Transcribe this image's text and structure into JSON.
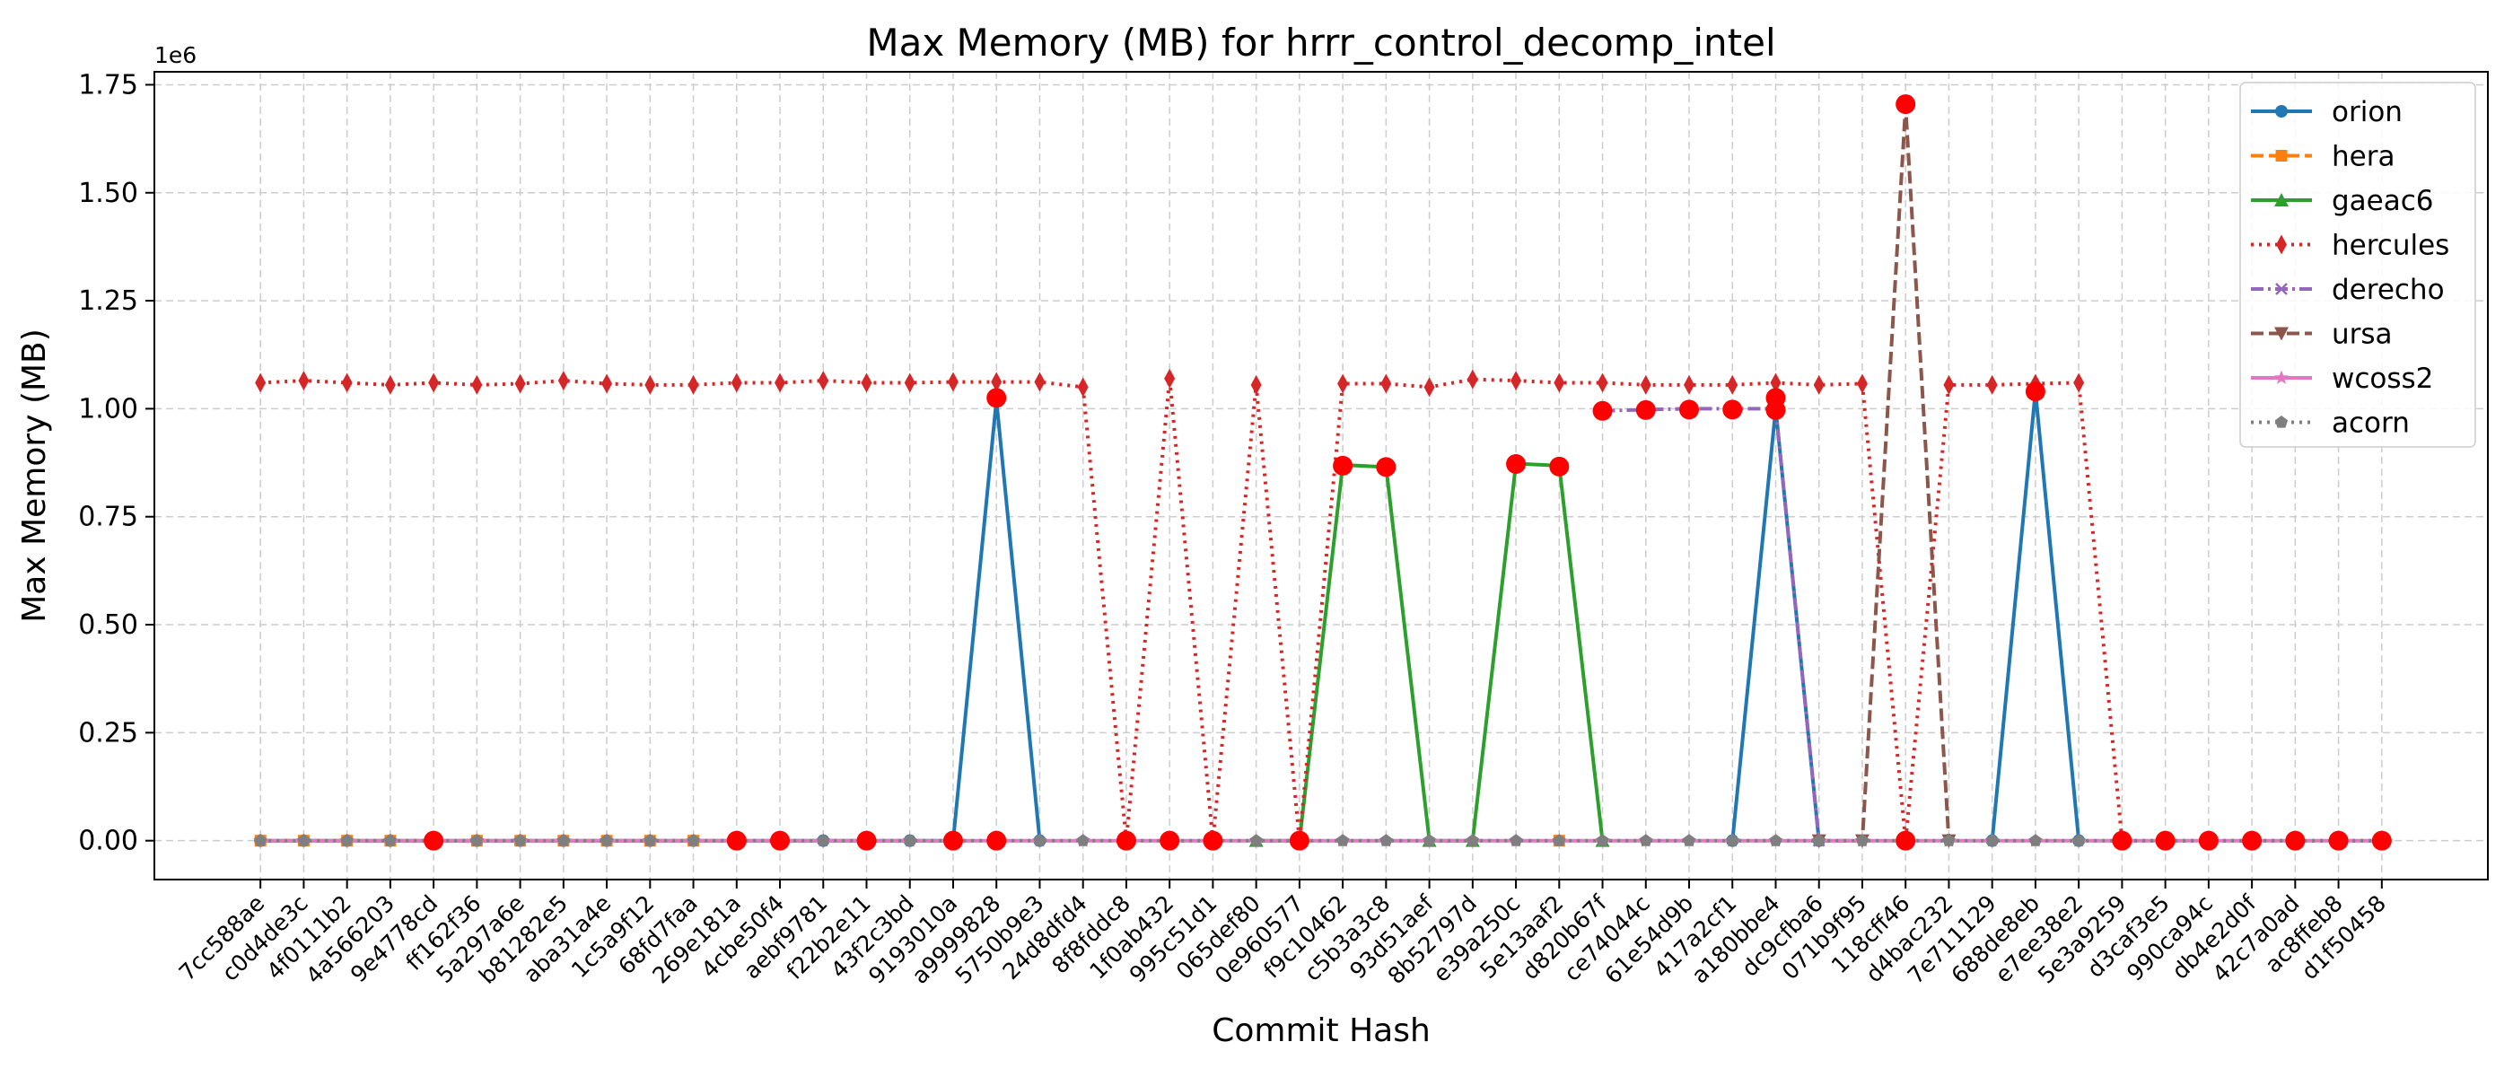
{
  "chart_data": {
    "type": "line",
    "title": "Max Memory (MB) for hrrr_control_decomp_intel",
    "xlabel": "Commit Hash",
    "ylabel": "Max Memory (MB)",
    "y_offset_text": "1e6",
    "y_scale": 1000000,
    "ylim": [
      -0.09,
      1.78
    ],
    "yticks": [
      0.0,
      0.25,
      0.5,
      0.75,
      1.0,
      1.25,
      1.5,
      1.75
    ],
    "ytick_labels": [
      "0.00",
      "0.25",
      "0.50",
      "0.75",
      "1.00",
      "1.25",
      "1.50",
      "1.75"
    ],
    "grid": true,
    "legend_position": "top-right",
    "categories": [
      "7cc588ae",
      "c0d4de3c",
      "4f0111b2",
      "4a566203",
      "9e4778cd",
      "ff162f36",
      "5a297a6e",
      "b81282e5",
      "aba31a4e",
      "1c5a9f12",
      "68fd7faa",
      "269e181a",
      "4cbe50f4",
      "aebf9781",
      "f22b2e11",
      "43f2c3bd",
      "9193010a",
      "a9999828",
      "5750b9e3",
      "24d8dfd4",
      "8f8fddc8",
      "1f0ab432",
      "995c51d1",
      "065def80",
      "0e960577",
      "f9c10462",
      "c5b3a3c8",
      "93d51aef",
      "8b52797d",
      "e39a250c",
      "5e13aaf2",
      "d820b67f",
      "ce74044c",
      "61e54d9b",
      "417a2cf1",
      "a180bbe4",
      "dc9cfba6",
      "071b9f95",
      "118cff46",
      "d4bac232",
      "7e711129",
      "688de8eb",
      "e7ee38e2",
      "5e3a9259",
      "d3caf3e5",
      "990ca94c",
      "db4e2d0f",
      "42c7a0ad",
      "ac8ffeb8",
      "d1f50458"
    ],
    "series": [
      {
        "name": "orion",
        "color": "#1f77b4",
        "dash": "solid",
        "marker": "circle",
        "values": [
          0,
          0,
          0,
          0,
          0,
          0,
          0,
          0,
          0,
          0,
          0,
          0,
          0,
          0,
          0,
          0,
          0,
          1.02,
          0,
          null,
          null,
          null,
          null,
          null,
          null,
          null,
          null,
          null,
          null,
          null,
          null,
          null,
          null,
          null,
          0,
          1.0,
          0,
          null,
          null,
          null,
          0,
          1.04,
          0,
          null,
          null,
          null,
          null,
          null,
          null,
          null
        ]
      },
      {
        "name": "hera",
        "color": "#ff7f0e",
        "dash": "dashed",
        "marker": "square",
        "values": [
          0,
          0,
          0,
          0,
          0,
          0,
          0,
          0,
          0,
          0,
          0,
          0,
          null,
          null,
          null,
          null,
          null,
          null,
          null,
          null,
          null,
          null,
          null,
          null,
          0,
          null,
          null,
          null,
          null,
          null,
          0,
          null,
          null,
          null,
          null,
          null,
          null,
          null,
          null,
          null,
          null,
          null,
          null,
          null,
          null,
          null,
          null,
          null,
          null,
          null
        ]
      },
      {
        "name": "gaeac6",
        "color": "#2ca02c",
        "dash": "solid",
        "marker": "triangle",
        "values": [
          null,
          null,
          null,
          null,
          null,
          null,
          null,
          null,
          null,
          null,
          null,
          null,
          null,
          null,
          null,
          null,
          null,
          null,
          null,
          null,
          null,
          null,
          null,
          0,
          0,
          0.87,
          0.865,
          0,
          0,
          0.873,
          0.868,
          0,
          null,
          null,
          null,
          null,
          null,
          null,
          null,
          null,
          null,
          null,
          null,
          null,
          null,
          null,
          null,
          null,
          null,
          null
        ]
      },
      {
        "name": "hercules",
        "color": "#d62728",
        "dash": "dotted",
        "marker": "thin_diamond",
        "values": [
          1.06,
          1.065,
          1.06,
          1.055,
          1.06,
          1.055,
          1.058,
          1.065,
          1.058,
          1.055,
          1.055,
          1.06,
          1.06,
          1.065,
          1.06,
          1.06,
          1.062,
          1.062,
          1.062,
          1.05,
          0,
          1.07,
          0,
          1.055,
          0,
          1.058,
          1.058,
          1.05,
          1.068,
          1.065,
          1.06,
          1.06,
          1.055,
          1.055,
          1.055,
          1.06,
          1.055,
          1.058,
          0,
          1.055,
          1.055,
          1.058,
          1.06,
          0,
          0,
          0,
          0,
          0,
          0,
          0
        ]
      },
      {
        "name": "derecho",
        "color": "#9467bd",
        "dash": "dashdot",
        "marker": "x",
        "values": [
          null,
          null,
          null,
          null,
          null,
          null,
          null,
          null,
          null,
          null,
          null,
          null,
          null,
          null,
          null,
          null,
          null,
          null,
          null,
          null,
          null,
          null,
          null,
          null,
          null,
          null,
          null,
          null,
          null,
          null,
          null,
          0.995,
          0.998,
          1.0,
          1.0,
          1.0,
          0,
          null,
          null,
          null,
          null,
          null,
          null,
          null,
          null,
          null,
          null,
          null,
          null,
          null
        ]
      },
      {
        "name": "ursa",
        "color": "#8c564b",
        "dash": "dashed",
        "marker": "triangle_down",
        "values": [
          null,
          null,
          null,
          null,
          null,
          null,
          null,
          null,
          null,
          null,
          null,
          null,
          null,
          null,
          null,
          null,
          null,
          null,
          null,
          null,
          null,
          null,
          null,
          null,
          null,
          null,
          null,
          null,
          null,
          null,
          null,
          null,
          null,
          null,
          null,
          null,
          0,
          0,
          1.7,
          0,
          null,
          null,
          null,
          null,
          null,
          null,
          null,
          null,
          null,
          null
        ]
      },
      {
        "name": "wcoss2",
        "color": "#e377c2",
        "dash": "solid",
        "marker": "star",
        "values": [
          0,
          0,
          0,
          0,
          0,
          0,
          0,
          0,
          0,
          0,
          0,
          0,
          0,
          0,
          0,
          0,
          0,
          0,
          0,
          0,
          0,
          0,
          0,
          0,
          0,
          0,
          0,
          0,
          0,
          0,
          0,
          0,
          0,
          0,
          0,
          0,
          0,
          0,
          0,
          0,
          0,
          0,
          0,
          0,
          0,
          0,
          0,
          0,
          0,
          0
        ]
      },
      {
        "name": "acorn",
        "color": "#7f7f7f",
        "dash": "dotted",
        "marker": "pentagon",
        "values": [
          0,
          0,
          0,
          0,
          0,
          0,
          0,
          0,
          0,
          0,
          0,
          0,
          0,
          0,
          0,
          0,
          0,
          0,
          0,
          0,
          0,
          0,
          0,
          0,
          0,
          0,
          0,
          0,
          0,
          0,
          0,
          0,
          0,
          0,
          0,
          0,
          0,
          0,
          0,
          0,
          0,
          0,
          0,
          0,
          0,
          0,
          0,
          0,
          0,
          0
        ]
      }
    ],
    "highlights": {
      "color": "#ff0000",
      "points": [
        {
          "x": "9e4778cd",
          "y": 0
        },
        {
          "x": "269e181a",
          "y": 0
        },
        {
          "x": "4cbe50f4",
          "y": 0
        },
        {
          "x": "f22b2e11",
          "y": 0
        },
        {
          "x": "9193010a",
          "y": 0
        },
        {
          "x": "a9999828",
          "y": 0
        },
        {
          "x": "a9999828",
          "y": 1.025
        },
        {
          "x": "8f8fddc8",
          "y": 0
        },
        {
          "x": "1f0ab432",
          "y": 0
        },
        {
          "x": "995c51d1",
          "y": 0
        },
        {
          "x": "0e960577",
          "y": 0
        },
        {
          "x": "f9c10462",
          "y": 0.868
        },
        {
          "x": "c5b3a3c8",
          "y": 0.865
        },
        {
          "x": "e39a250c",
          "y": 0.872
        },
        {
          "x": "5e13aaf2",
          "y": 0.866
        },
        {
          "x": "d820b67f",
          "y": 0.995
        },
        {
          "x": "ce74044c",
          "y": 0.997
        },
        {
          "x": "61e54d9b",
          "y": 0.998
        },
        {
          "x": "417a2cf1",
          "y": 0.998
        },
        {
          "x": "a180bbe4",
          "y": 1.025
        },
        {
          "x": "a180bbe4",
          "y": 0.997
        },
        {
          "x": "118cff46",
          "y": 1.705
        },
        {
          "x": "118cff46",
          "y": 0
        },
        {
          "x": "688de8eb",
          "y": 1.04
        },
        {
          "x": "5e3a9259",
          "y": 0
        },
        {
          "x": "d3caf3e5",
          "y": 0
        },
        {
          "x": "990ca94c",
          "y": 0
        },
        {
          "x": "db4e2d0f",
          "y": 0
        },
        {
          "x": "42c7a0ad",
          "y": 0
        },
        {
          "x": "ac8ffeb8",
          "y": 0
        },
        {
          "x": "d1f50458",
          "y": 0
        }
      ]
    }
  }
}
